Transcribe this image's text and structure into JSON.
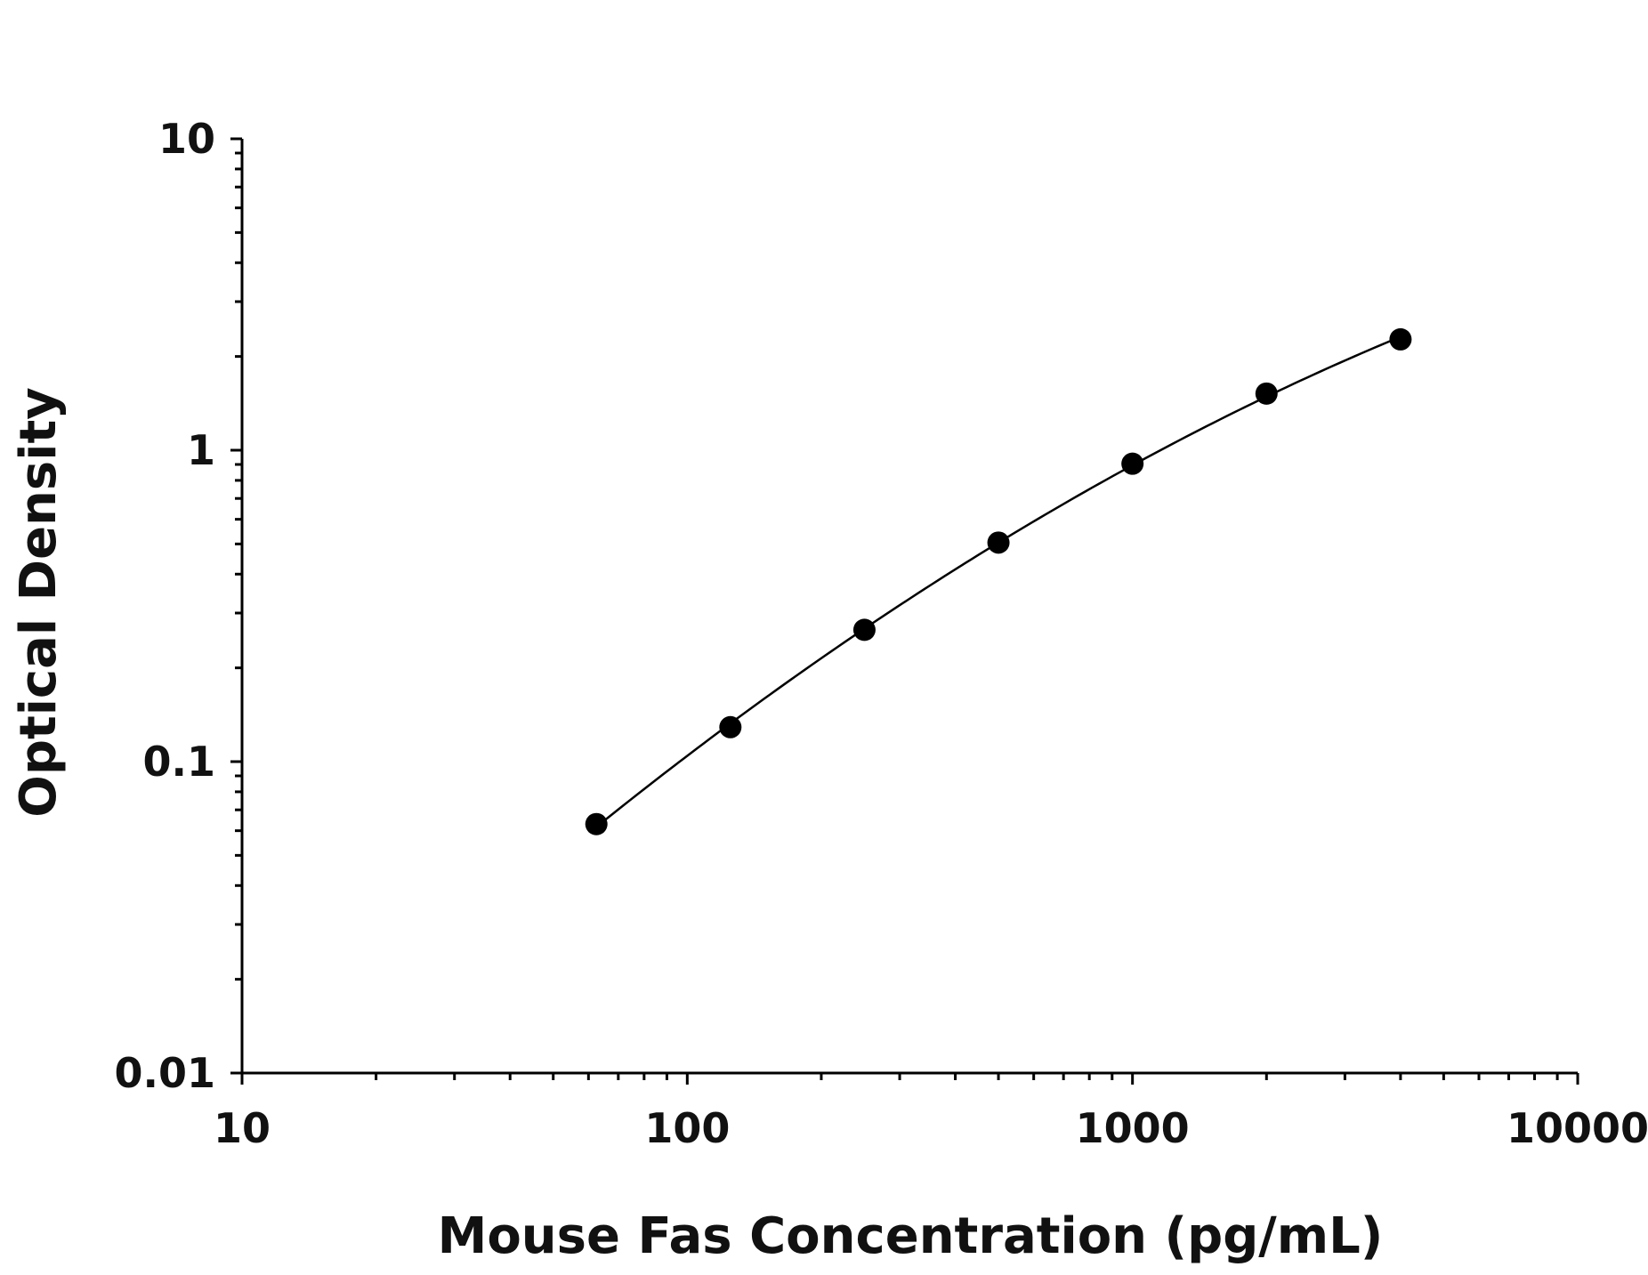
{
  "chart_data": {
    "type": "scatter",
    "xlabel": "Mouse Fas Concentration (pg/mL)",
    "ylabel": "Optical Density",
    "x_scale": "log",
    "y_scale": "log",
    "xlim": [
      10,
      10000
    ],
    "ylim": [
      0.01,
      10
    ],
    "x_ticks": [
      "10",
      "100",
      "1000",
      "10000"
    ],
    "y_ticks": [
      "0.01",
      "0.1",
      "1",
      "10"
    ],
    "grid": false,
    "series": [
      {
        "x": [
          62.5,
          125,
          250,
          500,
          1000,
          2000,
          4000
        ],
        "y": [
          0.063,
          0.129,
          0.265,
          0.505,
          0.905,
          1.52,
          2.27
        ]
      }
    ],
    "fit_curve": true,
    "colors": {
      "points": "#000000",
      "curve": "#000000",
      "axes": "#000000"
    }
  }
}
